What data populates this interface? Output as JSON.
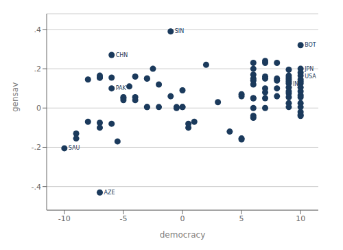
{
  "chart_data": {
    "type": "scatter",
    "xlabel": "democracy",
    "ylabel": "gensav",
    "xlim": [
      -11.5,
      11.5
    ],
    "ylim": [
      -0.52,
      0.48
    ],
    "xticks": [
      -10,
      -5,
      0,
      5,
      10
    ],
    "yticks": [
      {
        "value": -0.4,
        "label": "-.4"
      },
      {
        "value": -0.2,
        "label": "-.2"
      },
      0,
      {
        "value": 0.2,
        "label": ".2"
      },
      {
        "value": 0.4,
        "label": ".4"
      }
    ],
    "grid": "y",
    "color": "#1b3a5c",
    "x": [
      -10,
      -9,
      -9,
      -8,
      -8,
      -7,
      -7,
      -7,
      -7,
      -7,
      -7,
      -6,
      -6,
      -6,
      -6,
      -5.5,
      -5,
      -5,
      -5,
      -4.5,
      -4,
      -4,
      -4,
      -3,
      -3,
      -3,
      -3,
      -2.5,
      -2,
      -2,
      -1,
      -1,
      -0.5,
      -0.5,
      0,
      0,
      0,
      0.5,
      0.5,
      1,
      2,
      3,
      4,
      5,
      5,
      5,
      5,
      6,
      6,
      6,
      6,
      6,
      6,
      6,
      6,
      6,
      6,
      6,
      7,
      7,
      7,
      7,
      7,
      7,
      7,
      7,
      8,
      8,
      8,
      8,
      8,
      9,
      9,
      9,
      9,
      9,
      9,
      9,
      9,
      9,
      9,
      9,
      9,
      10,
      10,
      10,
      10,
      10,
      10,
      10,
      10,
      10,
      10,
      10,
      10,
      10,
      10,
      10,
      10
    ],
    "values": [
      -0.205,
      -0.13,
      -0.155,
      -0.07,
      0.145,
      0.155,
      -0.075,
      -0.1,
      0.155,
      0.165,
      -0.43,
      0.27,
      0.1,
      -0.08,
      0.155,
      -0.17,
      0.05,
      0.04,
      0.055,
      0.11,
      0.055,
      0.04,
      0.16,
      0.005,
      0.005,
      0.15,
      0.15,
      0.2,
      0.12,
      0.005,
      0.39,
      0.06,
      0.005,
      0.0,
      0.09,
      0.005,
      0.005,
      -0.1,
      -0.08,
      -0.07,
      0.22,
      0.03,
      -0.12,
      -0.155,
      0.06,
      -0.16,
      0.07,
      0.0,
      0.05,
      0.14,
      0.23,
      0.12,
      0.2,
      0.17,
      0.15,
      0.05,
      -0.05,
      -0.04,
      0.05,
      0.16,
      0.15,
      0.1,
      0.08,
      0.23,
      0.24,
      0.0,
      0.14,
      0.15,
      0.23,
      0.06,
      0.1,
      0.155,
      0.165,
      0.145,
      0.135,
      0.125,
      0.105,
      0.075,
      0.055,
      0.025,
      0.005,
      0.085,
      0.195,
      0.32,
      0.2,
      0.18,
      0.165,
      0.145,
      0.135,
      0.125,
      0.105,
      0.085,
      0.055,
      0.025,
      0.005,
      -0.02,
      0.065,
      -0.04,
      -0.035
    ],
    "annotations": [
      {
        "text": "SIN",
        "x": -1,
        "y": 0.39
      },
      {
        "text": "CHN",
        "x": -6,
        "y": 0.27
      },
      {
        "text": "PAK",
        "x": -6,
        "y": 0.1
      },
      {
        "text": "SAU",
        "x": -10,
        "y": -0.205
      },
      {
        "text": "AZE",
        "x": -7,
        "y": -0.43
      },
      {
        "text": "BOT",
        "x": 10,
        "y": 0.32
      },
      {
        "text": "JPN",
        "x": 10,
        "y": 0.2
      },
      {
        "text": "IND",
        "x": 9,
        "y": 0.155
      },
      {
        "text": "USA",
        "x": 10,
        "y": 0.18
      }
    ]
  }
}
